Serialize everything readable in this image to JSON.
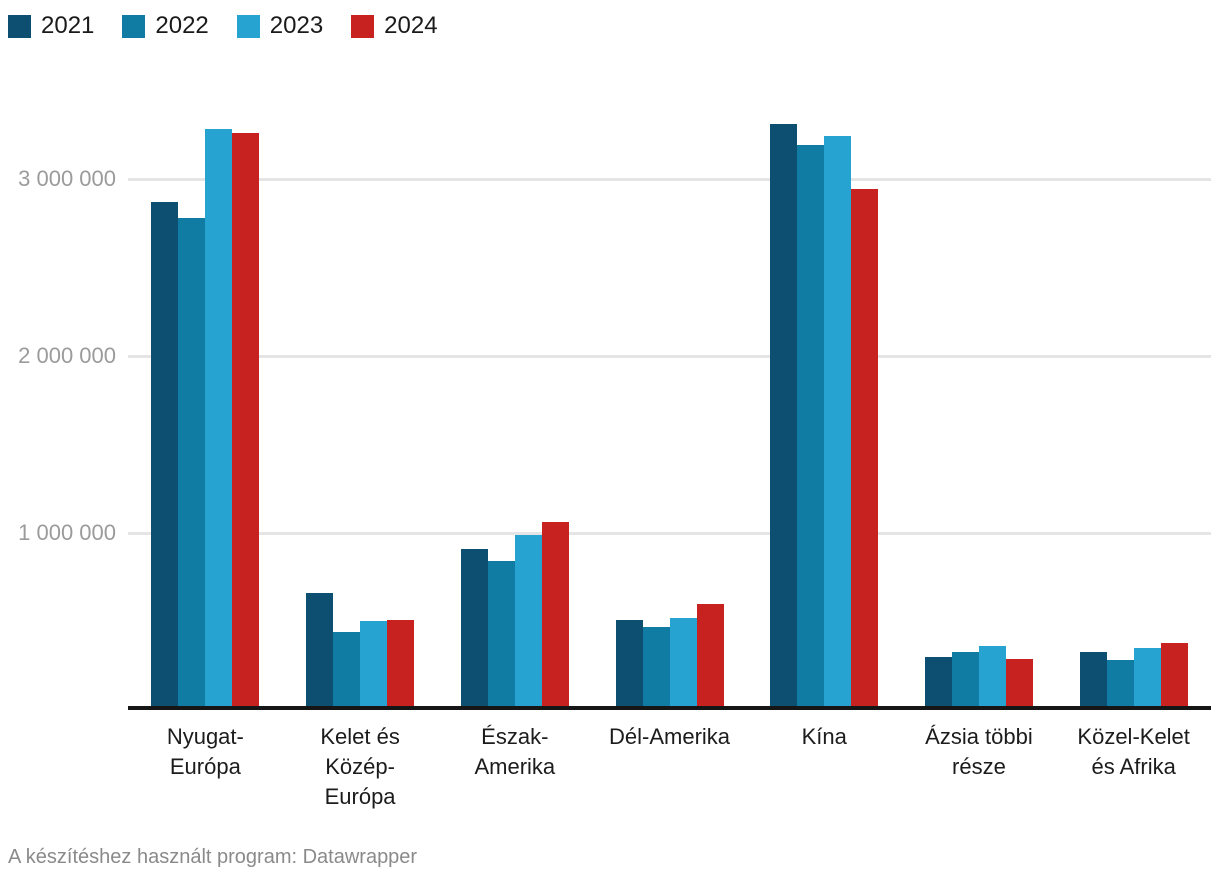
{
  "chart_data": {
    "type": "bar",
    "title": "",
    "categories": [
      "Nyugat-Európa",
      "Kelet és Közép-Európa",
      "Észak-Amerika",
      "Dél-Amerika",
      "Kína",
      "Ázsia többi része",
      "Közel-Kelet és Afrika"
    ],
    "category_label_lines": [
      [
        "Nyugat-",
        "Európa"
      ],
      [
        "Kelet és",
        "Közép-",
        "Európa"
      ],
      [
        "Észak-",
        "Amerika"
      ],
      [
        "Dél-Amerika"
      ],
      [
        "Kína"
      ],
      [
        "Ázsia többi",
        "része"
      ],
      [
        "Közel-Kelet",
        "és Afrika"
      ]
    ],
    "series": [
      {
        "name": "2021",
        "color": "#0d4f70",
        "values": [
          2870000,
          660000,
          910000,
          510000,
          3310000,
          300000,
          330000
        ]
      },
      {
        "name": "2022",
        "color": "#107ba3",
        "values": [
          2780000,
          440000,
          840000,
          470000,
          3190000,
          330000,
          280000
        ]
      },
      {
        "name": "2023",
        "color": "#27a3d2",
        "values": [
          3280000,
          500000,
          990000,
          520000,
          3240000,
          360000,
          350000
        ]
      },
      {
        "name": "2024",
        "color": "#c72120",
        "values": [
          3260000,
          510000,
          1060000,
          600000,
          2940000,
          290000,
          380000
        ]
      }
    ],
    "y_ticks": [
      {
        "value": 1000000,
        "label": "1 000 000"
      },
      {
        "value": 2000000,
        "label": "2 000 000"
      },
      {
        "value": 3000000,
        "label": "3 000 000"
      }
    ],
    "ylim": [
      0,
      3500000
    ],
    "xlabel": "",
    "ylabel": "",
    "grid": "horizontal",
    "legend_position": "top-left"
  },
  "footer": {
    "text": "A készítéshez használt program: Datawrapper"
  }
}
